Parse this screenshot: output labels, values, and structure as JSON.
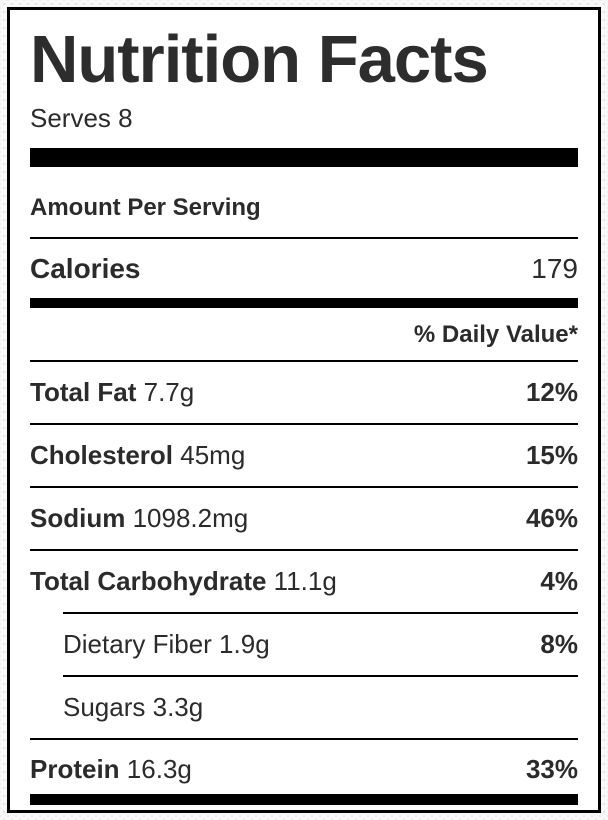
{
  "title": "Nutrition Facts",
  "serves": "Serves 8",
  "sections": {
    "amount_per_serving": "Amount Per Serving",
    "daily_value_header": "% Daily Value*"
  },
  "calories": {
    "label": "Calories",
    "value": "179"
  },
  "rows": [
    {
      "label": "Total Fat",
      "amount": "7.7g",
      "daily_value": "12%"
    },
    {
      "label": "Cholesterol",
      "amount": "45mg",
      "daily_value": "15%"
    },
    {
      "label": "Sodium",
      "amount": "1098.2mg",
      "daily_value": "46%"
    },
    {
      "label": "Total Carbohydrate",
      "amount": "11.1g",
      "daily_value": "4%"
    },
    {
      "label": "Dietary Fiber",
      "amount": "1.9g",
      "daily_value": "8%"
    },
    {
      "label": "Sugars",
      "amount": "3.3g",
      "daily_value": ""
    },
    {
      "label": "Protein",
      "amount": "16.3g",
      "daily_value": "33%"
    }
  ],
  "colors": {
    "text": "#2b2b2b",
    "rule": "#000000",
    "bar": "#000000",
    "label_background": "#ffffff",
    "page_background": "#f8f8f8"
  }
}
